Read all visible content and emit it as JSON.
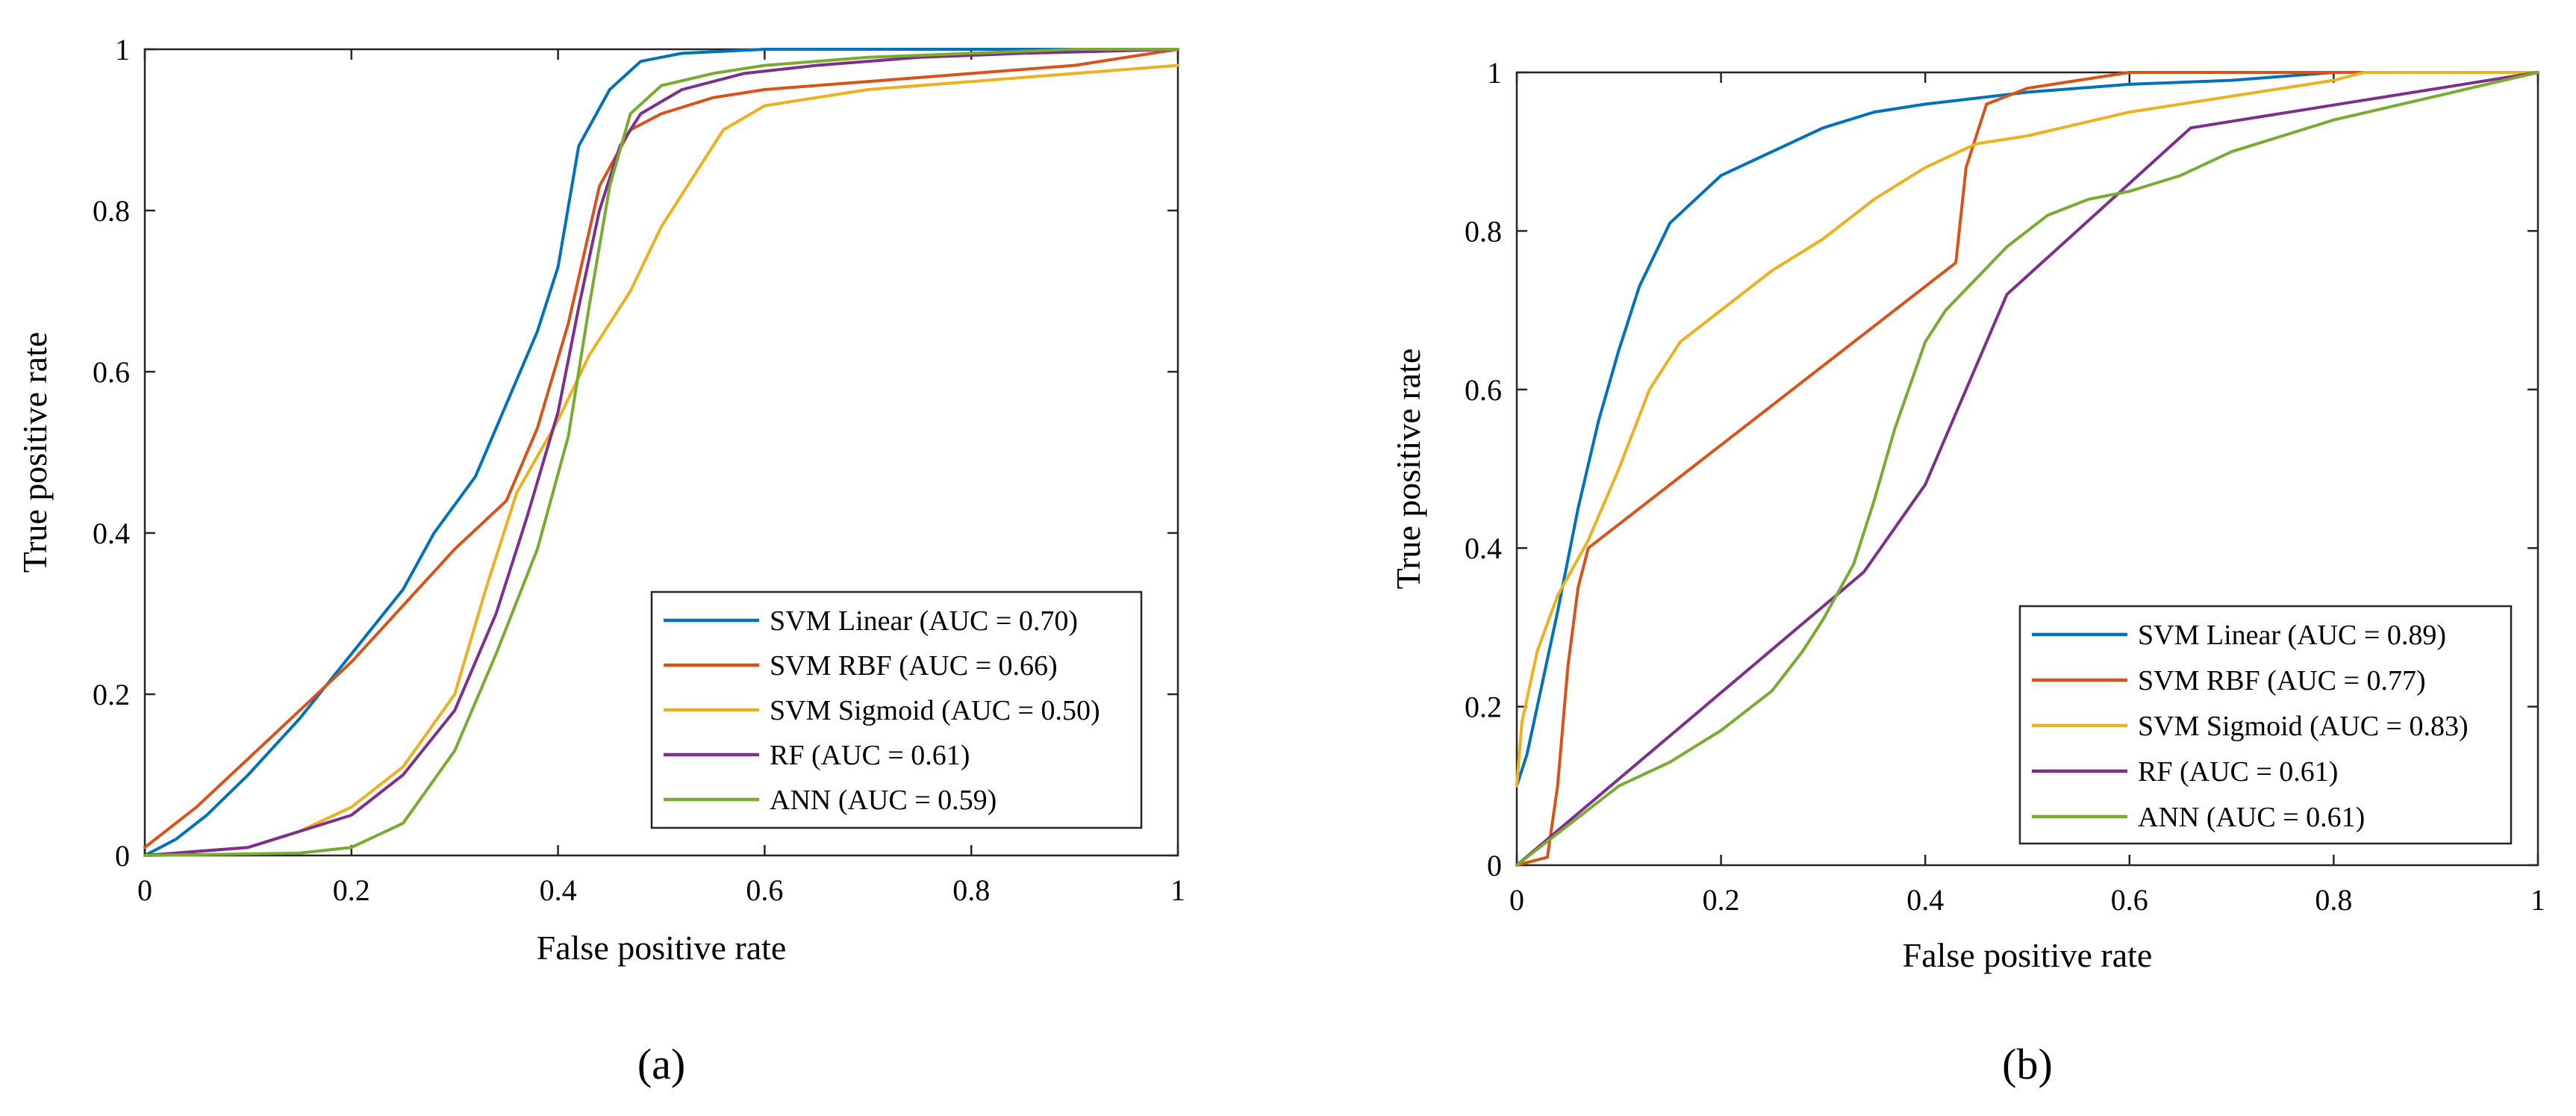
{
  "chart_data": [
    {
      "panel_label": "(a)",
      "type": "line",
      "title": "",
      "xlabel": "False positive rate",
      "ylabel": "True positive rate",
      "xlim": [
        0,
        1
      ],
      "ylim": [
        0,
        1
      ],
      "xticks": [
        0,
        0.2,
        0.4,
        0.6,
        0.8,
        1
      ],
      "yticks": [
        0,
        0.2,
        0.4,
        0.6,
        0.8,
        1
      ],
      "xtick_labels": [
        "0",
        "0.2",
        "0.4",
        "0.6",
        "0.8",
        "1"
      ],
      "ytick_labels": [
        "0",
        "0.2",
        "0.4",
        "0.6",
        "0.8",
        "1"
      ],
      "grid": false,
      "legend_position": "bottom-right",
      "series": [
        {
          "name": "SVM Linear (AUC = 0.70)",
          "color": "#0072BD",
          "x": [
            0,
            0.03,
            0.06,
            0.1,
            0.15,
            0.2,
            0.25,
            0.28,
            0.32,
            0.35,
            0.38,
            0.4,
            0.42,
            0.45,
            0.48,
            0.52,
            0.6,
            0.7,
            0.8,
            1
          ],
          "y": [
            0,
            0.02,
            0.05,
            0.1,
            0.17,
            0.25,
            0.33,
            0.4,
            0.47,
            0.56,
            0.65,
            0.73,
            0.88,
            0.95,
            0.985,
            0.995,
            1,
            1,
            1,
            1
          ]
        },
        {
          "name": "SVM RBF (AUC = 0.66)",
          "color": "#D95319",
          "x": [
            0,
            0.02,
            0.05,
            0.1,
            0.15,
            0.2,
            0.25,
            0.3,
            0.35,
            0.38,
            0.41,
            0.44,
            0.47,
            0.5,
            0.55,
            0.6,
            0.7,
            0.8,
            0.9,
            1
          ],
          "y": [
            0.01,
            0.03,
            0.06,
            0.12,
            0.18,
            0.24,
            0.31,
            0.38,
            0.44,
            0.53,
            0.66,
            0.83,
            0.9,
            0.92,
            0.94,
            0.95,
            0.96,
            0.97,
            0.98,
            1
          ]
        },
        {
          "name": "SVM Sigmoid (AUC = 0.50)",
          "color": "#EDB120",
          "x": [
            0,
            0.1,
            0.15,
            0.2,
            0.25,
            0.3,
            0.33,
            0.36,
            0.4,
            0.43,
            0.47,
            0.5,
            0.53,
            0.56,
            0.6,
            0.7,
            0.8,
            0.9,
            1
          ],
          "y": [
            0,
            0.01,
            0.03,
            0.06,
            0.11,
            0.2,
            0.33,
            0.45,
            0.54,
            0.62,
            0.7,
            0.78,
            0.84,
            0.9,
            0.93,
            0.95,
            0.96,
            0.97,
            0.98
          ]
        },
        {
          "name": "RF (AUC = 0.61)",
          "color": "#7E2F8E",
          "x": [
            0,
            0.1,
            0.15,
            0.2,
            0.25,
            0.3,
            0.34,
            0.37,
            0.4,
            0.42,
            0.44,
            0.46,
            0.48,
            0.52,
            0.58,
            0.65,
            0.75,
            0.85,
            1
          ],
          "y": [
            0,
            0.01,
            0.03,
            0.05,
            0.1,
            0.18,
            0.3,
            0.42,
            0.55,
            0.68,
            0.8,
            0.88,
            0.92,
            0.95,
            0.97,
            0.98,
            0.99,
            0.995,
            1
          ]
        },
        {
          "name": "ANN  (AUC = 0.59)",
          "color": "#77AC30",
          "x": [
            0,
            0.15,
            0.2,
            0.25,
            0.3,
            0.34,
            0.38,
            0.41,
            0.43,
            0.45,
            0.47,
            0.5,
            0.55,
            0.6,
            0.7,
            0.8,
            0.9,
            1
          ],
          "y": [
            0,
            0.003,
            0.01,
            0.04,
            0.13,
            0.25,
            0.38,
            0.52,
            0.68,
            0.83,
            0.92,
            0.955,
            0.97,
            0.98,
            0.99,
            0.995,
            1,
            1
          ]
        }
      ]
    },
    {
      "panel_label": "(b)",
      "type": "line",
      "title": "",
      "xlabel": "False positive rate",
      "ylabel": "True positive rate",
      "xlim": [
        0,
        1
      ],
      "ylim": [
        0,
        1
      ],
      "xticks": [
        0,
        0.2,
        0.4,
        0.6,
        0.8,
        1
      ],
      "yticks": [
        0,
        0.2,
        0.4,
        0.6,
        0.8,
        1
      ],
      "xtick_labels": [
        "0",
        "0.2",
        "0.4",
        "0.6",
        "0.8",
        "1"
      ],
      "ytick_labels": [
        "0",
        "0.2",
        "0.4",
        "0.6",
        "0.8",
        "1"
      ],
      "grid": false,
      "legend_position": "bottom-right",
      "series": [
        {
          "name": "SVM Linear (AUC = 0.89)",
          "color": "#0072BD",
          "x": [
            0,
            0.01,
            0.02,
            0.04,
            0.06,
            0.08,
            0.1,
            0.12,
            0.15,
            0.2,
            0.25,
            0.3,
            0.35,
            0.4,
            0.5,
            0.6,
            0.7,
            0.8,
            1
          ],
          "y": [
            0.1,
            0.14,
            0.2,
            0.32,
            0.45,
            0.56,
            0.65,
            0.73,
            0.81,
            0.87,
            0.9,
            0.93,
            0.95,
            0.96,
            0.975,
            0.985,
            0.99,
            1,
            1
          ]
        },
        {
          "name": "SVM RBF (AUC = 0.77)",
          "color": "#D95319",
          "x": [
            0,
            0.03,
            0.04,
            0.05,
            0.06,
            0.07,
            0.43,
            0.44,
            0.46,
            0.5,
            0.6,
            0.7,
            0.8,
            1
          ],
          "y": [
            0,
            0.01,
            0.1,
            0.25,
            0.35,
            0.4,
            0.76,
            0.88,
            0.96,
            0.98,
            1,
            1,
            1,
            1
          ]
        },
        {
          "name": "SVM Sigmoid (AUC = 0.83)",
          "color": "#EDB120",
          "x": [
            0,
            0.005,
            0.02,
            0.04,
            0.07,
            0.1,
            0.13,
            0.16,
            0.2,
            0.25,
            0.3,
            0.35,
            0.4,
            0.45,
            0.5,
            0.6,
            0.7,
            0.8,
            0.83,
            1
          ],
          "y": [
            0.1,
            0.18,
            0.27,
            0.34,
            0.41,
            0.5,
            0.6,
            0.66,
            0.7,
            0.75,
            0.79,
            0.84,
            0.88,
            0.91,
            0.92,
            0.95,
            0.97,
            0.99,
            1,
            1
          ]
        },
        {
          "name": "RF (AUC = 0.61)",
          "color": "#7E2F8E",
          "x": [
            0,
            0.34,
            0.4,
            0.48,
            0.66,
            1
          ],
          "y": [
            0,
            0.37,
            0.48,
            0.72,
            0.93,
            1
          ]
        },
        {
          "name": "ANN (AUC = 0.61)",
          "color": "#77AC30",
          "x": [
            0,
            0.05,
            0.1,
            0.15,
            0.2,
            0.25,
            0.28,
            0.3,
            0.33,
            0.35,
            0.37,
            0.4,
            0.42,
            0.45,
            0.48,
            0.52,
            0.56,
            0.6,
            0.65,
            0.7,
            0.8,
            0.9,
            1
          ],
          "y": [
            0,
            0.05,
            0.1,
            0.13,
            0.17,
            0.22,
            0.27,
            0.31,
            0.38,
            0.46,
            0.55,
            0.66,
            0.7,
            0.74,
            0.78,
            0.82,
            0.84,
            0.85,
            0.87,
            0.9,
            0.94,
            0.97,
            1
          ]
        }
      ]
    }
  ]
}
